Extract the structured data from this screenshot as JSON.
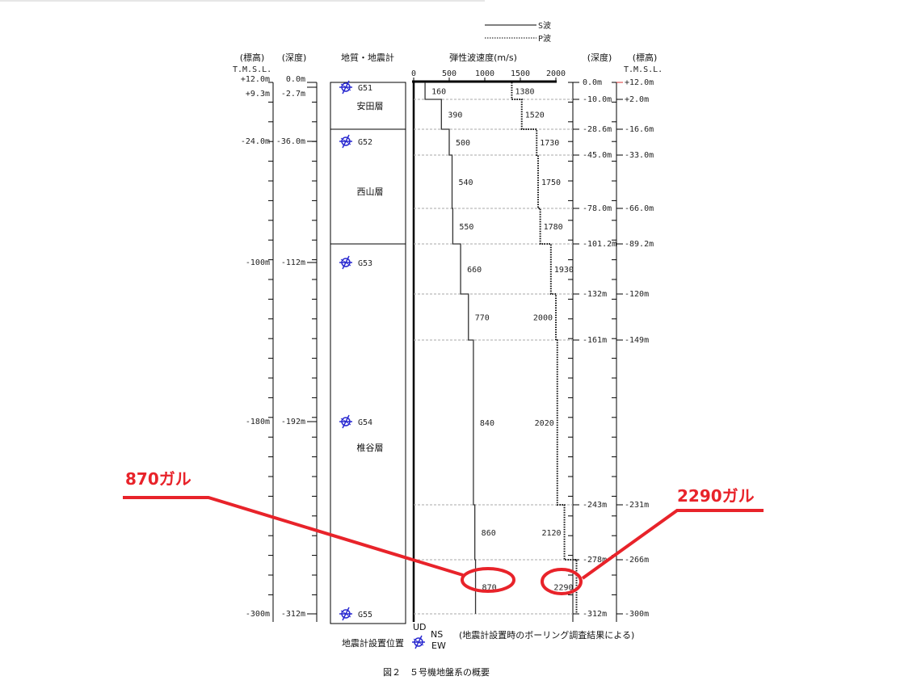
{
  "legend": {
    "s_wave": "S波",
    "p_wave": "P波"
  },
  "headers": {
    "left_elev": "(標高)",
    "left_depth": "(深度)",
    "geology": "地質・地震計",
    "velocity": "弾性波速度(m/s)",
    "right_depth": "(深度)",
    "right_elev": "(標高)",
    "tmsl_left": "T.M.S.L.",
    "tmsl_right": "T.M.S.L."
  },
  "velocity_ticks": [
    "0",
    "500",
    "1000",
    "1500",
    "2000"
  ],
  "left_axis": [
    {
      "elev": "+12.0m",
      "depth": "0.0m"
    },
    {
      "elev": "+9.3m",
      "depth": "-2.7m"
    },
    {
      "elev": "-24.0m",
      "depth": "-36.0m"
    },
    {
      "elev": "-100m",
      "depth": "-112m"
    },
    {
      "elev": "-180m",
      "depth": "-192m"
    },
    {
      "elev": "-300m",
      "depth": "-312m"
    }
  ],
  "right_axis": [
    {
      "depth": "0.0m",
      "elev": "+12.0m"
    },
    {
      "depth": "-10.0m",
      "elev": "+2.0m"
    },
    {
      "depth": "-28.6m",
      "elev": "-16.6m"
    },
    {
      "depth": "-45.0m",
      "elev": "-33.0m"
    },
    {
      "depth": "-78.0m",
      "elev": "-66.0m"
    },
    {
      "depth": "-101.2m",
      "elev": "-89.2m"
    },
    {
      "depth": "-132m",
      "elev": "-120m"
    },
    {
      "depth": "-161m",
      "elev": "-149m"
    },
    {
      "depth": "-243m",
      "elev": "-231m"
    },
    {
      "depth": "-278m",
      "elev": "-266m"
    },
    {
      "depth": "-312m",
      "elev": "-300m"
    }
  ],
  "layers": [
    "安田層",
    "西山層",
    "椎谷層"
  ],
  "seismometers": [
    "G51",
    "G52",
    "G53",
    "G54",
    "G55"
  ],
  "s_wave": [
    "160",
    "390",
    "500",
    "540",
    "550",
    "660",
    "770",
    "840",
    "860",
    "870"
  ],
  "p_wave": [
    "1380",
    "1520",
    "1730",
    "1750",
    "1780",
    "1930",
    "2000",
    "2020",
    "2120",
    "2290"
  ],
  "seismometer_legend": {
    "label": "地震計設置位置",
    "ud": "UD",
    "ns": "NS",
    "ew": "EW"
  },
  "note": "(地震計設置時のボーリング調査結果による)",
  "caption": "図２　５号機地盤系の概要",
  "annotations": {
    "left": "870ガル",
    "right": "2290ガル",
    "color": "#e8232a"
  }
}
